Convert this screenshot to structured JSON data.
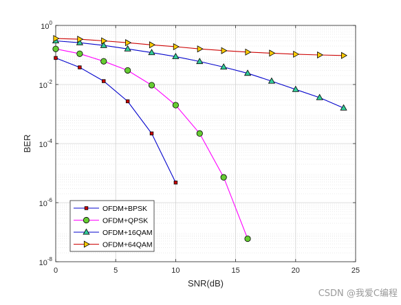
{
  "chart_data": {
    "type": "line",
    "xlabel": "SNR(dB)",
    "ylabel": "BER",
    "xlim": [
      0,
      25
    ],
    "ylim": [
      1e-08,
      1
    ],
    "yscale": "log",
    "grid": true,
    "legend_position": "bottom-left",
    "x_ticks": [
      "0",
      "5",
      "10",
      "15",
      "20",
      "25"
    ],
    "y_ticks": [
      {
        "base": "10",
        "exp": "0",
        "value": 1
      },
      {
        "base": "10",
        "exp": "-2",
        "value": 0.01
      },
      {
        "base": "10",
        "exp": "-4",
        "value": 0.0001
      },
      {
        "base": "10",
        "exp": "-6",
        "value": 1e-06
      },
      {
        "base": "10",
        "exp": "-8",
        "value": 1e-08
      }
    ],
    "series": [
      {
        "name": "OFDM+BPSK",
        "color": "#0000cc",
        "marker": "square",
        "marker_color": "#cc0000",
        "x": [
          0,
          2,
          4,
          6,
          8,
          10
        ],
        "y": [
          0.079,
          0.038,
          0.013,
          0.0027,
          0.00022,
          4.8e-06
        ]
      },
      {
        "name": "OFDM+QPSK",
        "color": "#ff00ff",
        "marker": "circle",
        "marker_color": "#66cc33",
        "x": [
          0,
          2,
          4,
          6,
          8,
          10,
          12,
          14,
          16
        ],
        "y": [
          0.16,
          0.11,
          0.061,
          0.03,
          0.0095,
          0.002,
          0.00022,
          7.2e-06,
          6e-08
        ]
      },
      {
        "name": "OFDM+16QAM",
        "color": "#0000cc",
        "marker": "triangle",
        "marker_color": "#33cc99",
        "x": [
          0,
          2,
          4,
          6,
          8,
          10,
          12,
          14,
          16,
          18,
          20,
          22,
          24
        ],
        "y": [
          0.3,
          0.26,
          0.21,
          0.16,
          0.12,
          0.088,
          0.06,
          0.039,
          0.024,
          0.013,
          0.0068,
          0.0036,
          0.0016
        ]
      },
      {
        "name": "OFDM+64QAM",
        "color": "#cc0000",
        "marker": "triangle-right",
        "marker_color": "#ffcc00",
        "x": [
          0,
          2,
          4,
          6,
          8,
          10,
          12,
          14,
          16,
          18,
          20,
          22,
          24
        ],
        "y": [
          0.36,
          0.34,
          0.3,
          0.26,
          0.22,
          0.19,
          0.16,
          0.14,
          0.125,
          0.115,
          0.106,
          0.1,
          0.096
        ]
      }
    ]
  },
  "watermark": "CSDN @我爱C编程"
}
